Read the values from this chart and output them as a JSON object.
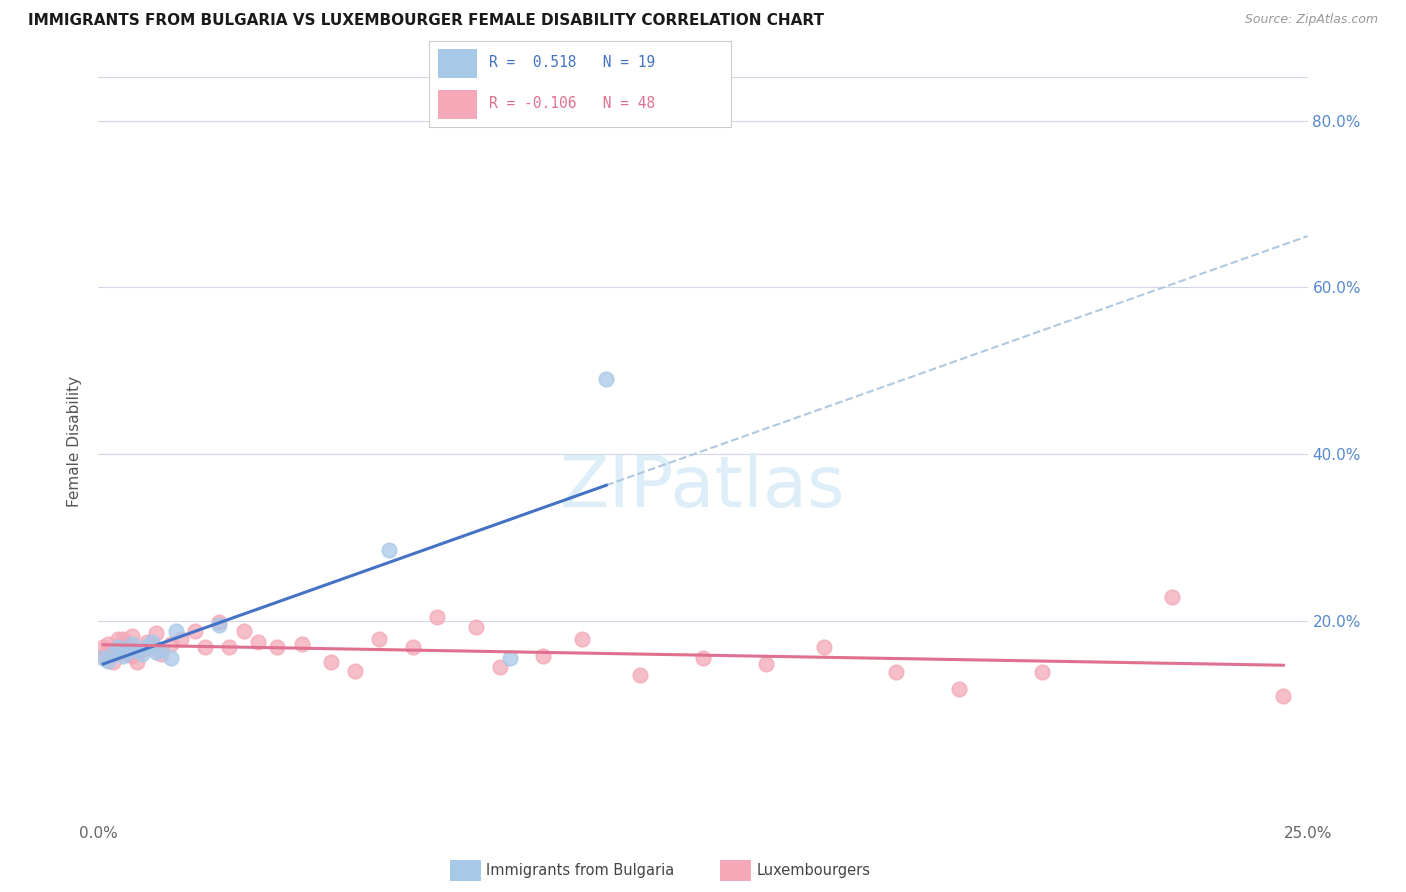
{
  "title": "IMMIGRANTS FROM BULGARIA VS LUXEMBOURGER FEMALE DISABILITY CORRELATION CHART",
  "source": "Source: ZipAtlas.com",
  "ylabel": "Female Disability",
  "xmin": 0.0,
  "xmax": 0.25,
  "ymin": -0.04,
  "ymax": 0.87,
  "ytick_vals": [
    0.2,
    0.4,
    0.6,
    0.8
  ],
  "ytick_labels": [
    "20.0%",
    "40.0%",
    "60.0%",
    "80.0%"
  ],
  "xtick_vals": [
    0.0,
    0.05,
    0.1,
    0.15,
    0.2,
    0.25
  ],
  "xtick_labels": [
    "0.0%",
    "",
    "",
    "",
    "",
    "25.0%"
  ],
  "color_blue": "#a8c8e8",
  "color_pink": "#f4a8b8",
  "line_blue": "#4472c4",
  "line_pink": "#e07090",
  "line_dashed": "#b0c8e0",
  "bulgaria_x": [
    0.001,
    0.002,
    0.003,
    0.004,
    0.005,
    0.006,
    0.007,
    0.008,
    0.009,
    0.01,
    0.011,
    0.012,
    0.013,
    0.015,
    0.016,
    0.025,
    0.06,
    0.085,
    0.105
  ],
  "bulgaria_y": [
    0.155,
    0.152,
    0.16,
    0.168,
    0.158,
    0.162,
    0.172,
    0.165,
    0.16,
    0.17,
    0.175,
    0.163,
    0.165,
    0.155,
    0.188,
    0.195,
    0.285,
    0.155,
    0.49
  ],
  "luxembourger_x": [
    0.001,
    0.001,
    0.002,
    0.002,
    0.003,
    0.003,
    0.004,
    0.004,
    0.005,
    0.005,
    0.006,
    0.006,
    0.007,
    0.007,
    0.008,
    0.009,
    0.01,
    0.011,
    0.012,
    0.013,
    0.015,
    0.017,
    0.02,
    0.022,
    0.025,
    0.027,
    0.03,
    0.033,
    0.037,
    0.042,
    0.048,
    0.053,
    0.058,
    0.065,
    0.07,
    0.078,
    0.083,
    0.092,
    0.1,
    0.112,
    0.125,
    0.138,
    0.15,
    0.165,
    0.178,
    0.195,
    0.222,
    0.245
  ],
  "luxembourger_y": [
    0.168,
    0.158,
    0.165,
    0.172,
    0.16,
    0.15,
    0.178,
    0.162,
    0.17,
    0.178,
    0.16,
    0.168,
    0.182,
    0.158,
    0.15,
    0.165,
    0.175,
    0.168,
    0.185,
    0.16,
    0.172,
    0.178,
    0.188,
    0.168,
    0.198,
    0.168,
    0.188,
    0.175,
    0.168,
    0.172,
    0.15,
    0.14,
    0.178,
    0.168,
    0.205,
    0.192,
    0.145,
    0.158,
    0.178,
    0.135,
    0.155,
    0.148,
    0.168,
    0.138,
    0.118,
    0.138,
    0.228,
    0.11
  ],
  "legend_r1_color": "#4472c4",
  "legend_r2_color": "#e07090",
  "watermark_color": "#ddeef8"
}
